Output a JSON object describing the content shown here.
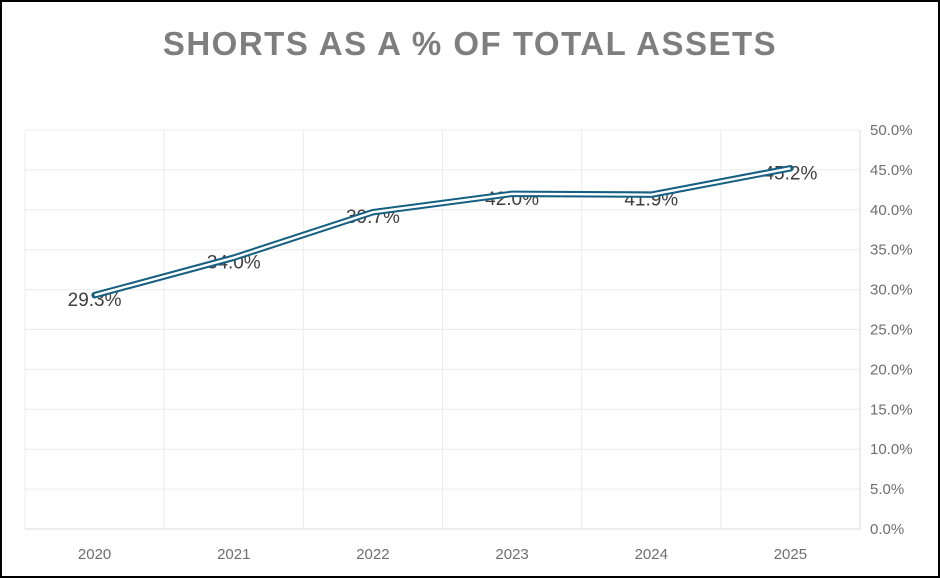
{
  "chart_data": {
    "type": "line",
    "title": "SHORTS AS A % OF TOTAL ASSETS",
    "categories": [
      "2020",
      "2021",
      "2022",
      "2023",
      "2024",
      "2025"
    ],
    "values": [
      29.3,
      34.0,
      39.7,
      42.0,
      41.9,
      45.2
    ],
    "data_labels": [
      "29.3%",
      "34.0%",
      "39.7%",
      "42.0%",
      "41.9%",
      "45.2%"
    ],
    "xlabel": "",
    "ylabel": "",
    "ylim": [
      0,
      50
    ],
    "y_tick_step": 5,
    "y_tick_labels": [
      "0.0%",
      "5.0%",
      "10.0%",
      "15.0%",
      "20.0%",
      "25.0%",
      "30.0%",
      "35.0%",
      "40.0%",
      "45.0%",
      "50.0%"
    ],
    "y_axis_position": "right",
    "grid": true,
    "legend": "none",
    "line_style": "double",
    "colors": {
      "line": "#156082",
      "line_gap": "#ffffff",
      "title": "#7e7e7e",
      "data_label": "#3f3f3f",
      "axis_label": "#6f6f6f",
      "gridline": "#ececec",
      "plot_border": "#d9d9d9",
      "window_border": "#000000",
      "background": "#ffffff"
    }
  }
}
